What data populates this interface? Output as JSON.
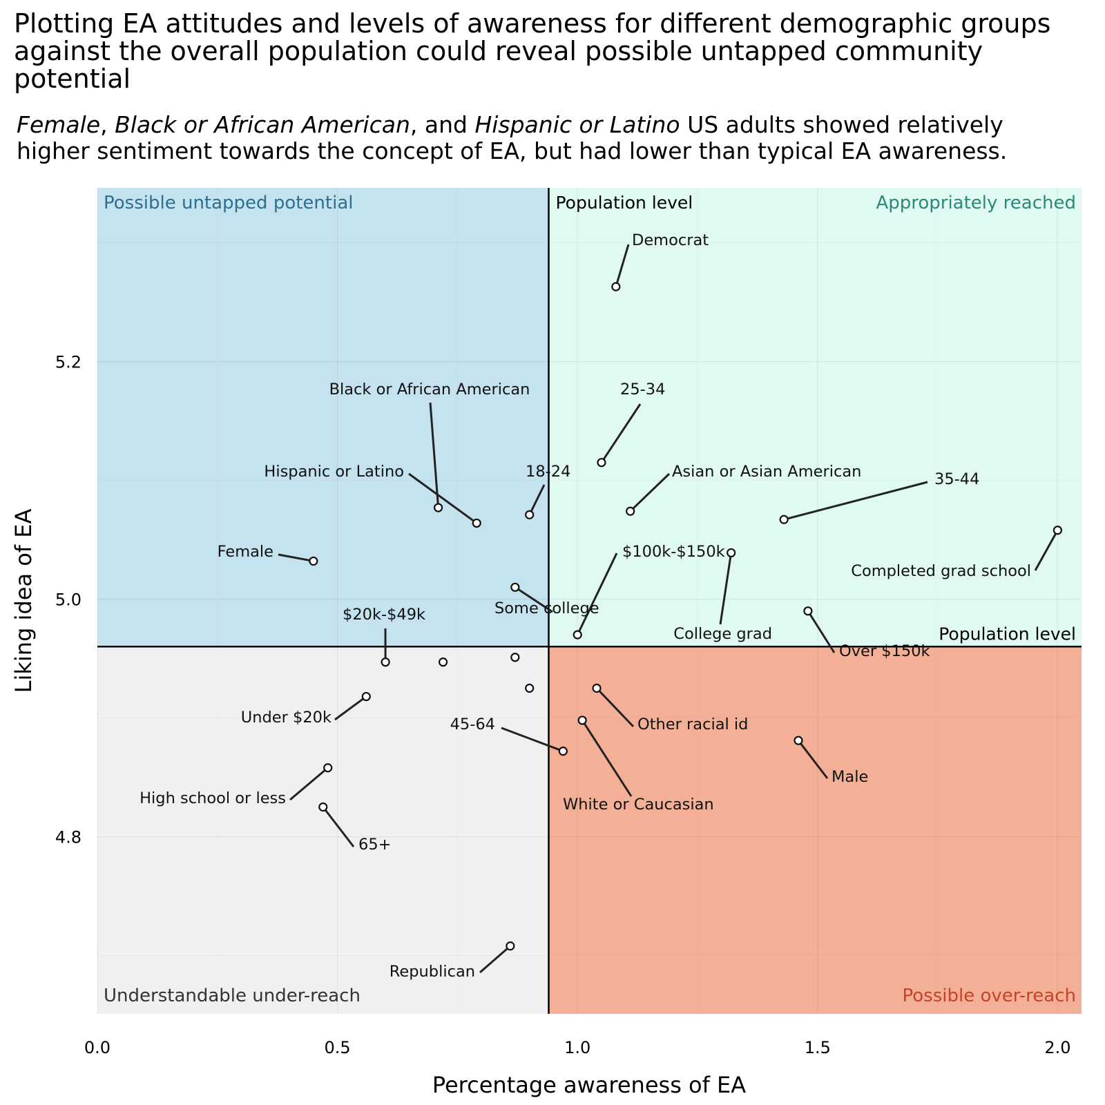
{
  "title": "Plotting EA attitudes and levels of awareness for different demographic groups against the overall population could reveal possible untapped community potential",
  "subtitle": {
    "g1": "Female",
    "s1": ", ",
    "g2": "Black or African American",
    "s2": ", and ",
    "g3": "Hispanic or Latino",
    "rest": " US adults showed relatively higher sentiment towards the concept of EA, but had lower than typical EA awareness."
  },
  "colors": {
    "untapped": "#c5e2ef",
    "reached": "#e1f9f3",
    "under": "#f0f0f0",
    "over": "#f4b096",
    "untapped_text": "#2c6f8f",
    "reached_text": "#2a8a78",
    "under_text": "#333333",
    "over_text": "#c4432a"
  },
  "chart_data": {
    "type": "scatter",
    "xlabel": "Percentage awareness of EA",
    "ylabel": "Liking idea of EA",
    "xlim": [
      0.0,
      2.05
    ],
    "ylim": [
      4.65,
      5.35
    ],
    "x_ticks": [
      "0.0",
      "0.5",
      "1.0",
      "1.5",
      "2.0"
    ],
    "y_ticks": [
      "4.8",
      "5.0",
      "5.2"
    ],
    "population": {
      "x": 0.94,
      "y": 4.96,
      "label_v": "Population level",
      "label_h": "Population level"
    },
    "quadrants": {
      "top_left": "Possible untapped potential",
      "top_right": "Appropriately reached",
      "bottom_left": "Understandable under-reach",
      "bottom_right": "Possible over-reach"
    },
    "points": [
      {
        "label": "Democrat",
        "x": 1.08,
        "y": 5.263
      },
      {
        "label": "25-34",
        "x": 1.05,
        "y": 5.115
      },
      {
        "label": "Asian or Asian American",
        "x": 1.11,
        "y": 5.074
      },
      {
        "label": "35-44",
        "x": 1.43,
        "y": 5.067
      },
      {
        "label": "Completed grad school",
        "x": 2.0,
        "y": 5.058
      },
      {
        "label": "$100k-$150k",
        "x": 1.0,
        "y": 4.97
      },
      {
        "label": "College grad",
        "x": 1.32,
        "y": 5.039
      },
      {
        "label": "Over $150k",
        "x": 1.48,
        "y": 4.99
      },
      {
        "label": "Black or African American",
        "x": 0.71,
        "y": 5.077
      },
      {
        "label": "Hispanic or Latino",
        "x": 0.79,
        "y": 5.064
      },
      {
        "label": "18-24",
        "x": 0.9,
        "y": 5.071
      },
      {
        "label": "Female",
        "x": 0.45,
        "y": 5.032
      },
      {
        "label": "Some college",
        "x": 0.87,
        "y": 5.01
      },
      {
        "label": "$20k-$49k",
        "x": 0.6,
        "y": 4.947
      },
      {
        "label": "",
        "x": 0.72,
        "y": 4.947
      },
      {
        "label": "",
        "x": 0.87,
        "y": 4.951
      },
      {
        "label": "",
        "x": 0.9,
        "y": 4.925
      },
      {
        "label": "Under $20k",
        "x": 0.56,
        "y": 4.918
      },
      {
        "label": "High school or less",
        "x": 0.48,
        "y": 4.858
      },
      {
        "label": "65+",
        "x": 0.47,
        "y": 4.825
      },
      {
        "label": "45-64",
        "x": 0.97,
        "y": 4.872
      },
      {
        "label": "Other racial id",
        "x": 1.04,
        "y": 4.925
      },
      {
        "label": "White or Caucasian",
        "x": 1.01,
        "y": 4.898
      },
      {
        "label": "Male",
        "x": 1.46,
        "y": 4.881
      },
      {
        "label": "Republican",
        "x": 0.86,
        "y": 4.708
      }
    ]
  }
}
